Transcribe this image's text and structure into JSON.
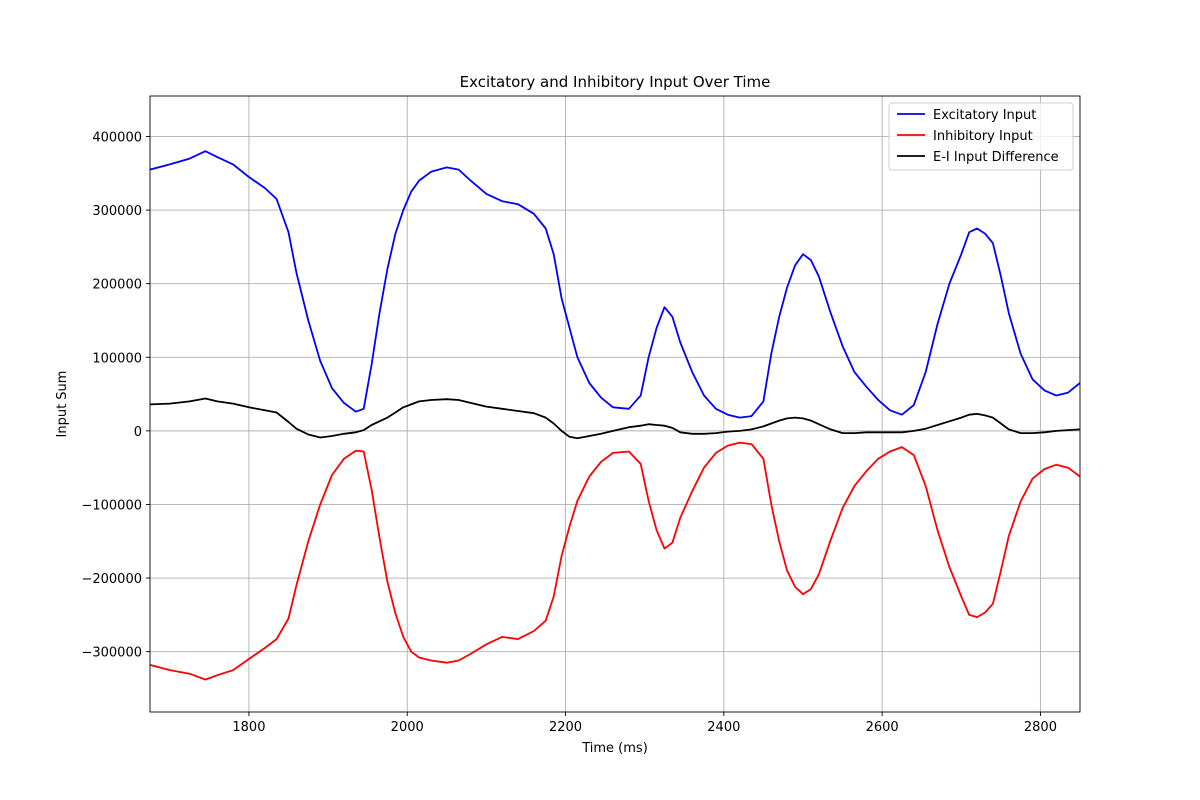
{
  "chart_data": {
    "type": "line",
    "title": "Excitatory and Inhibitory Input Over Time",
    "xlabel": "Time (ms)",
    "ylabel": "Input Sum",
    "xlim": [
      1675,
      2850
    ],
    "ylim": [
      -382000,
      455000
    ],
    "grid": true,
    "legend_position": "top-right",
    "x_ticks": [
      1800,
      2000,
      2200,
      2400,
      2600,
      2800
    ],
    "x_tick_labels": [
      "1800",
      "2000",
      "2200",
      "2400",
      "2600",
      "2800"
    ],
    "y_ticks": [
      -300000,
      -200000,
      -100000,
      0,
      100000,
      200000,
      300000,
      400000
    ],
    "y_tick_labels": [
      "−300000",
      "−200000",
      "−100000",
      "0",
      "100000",
      "200000",
      "300000",
      "400000"
    ],
    "series": [
      {
        "name": "Excitatory Input",
        "color": "#0000ff",
        "x": [
          1675,
          1700,
          1725,
          1745,
          1760,
          1780,
          1800,
          1820,
          1835,
          1850,
          1860,
          1875,
          1890,
          1905,
          1920,
          1935,
          1945,
          1955,
          1965,
          1975,
          1985,
          1995,
          2005,
          2015,
          2030,
          2050,
          2065,
          2080,
          2100,
          2120,
          2140,
          2160,
          2175,
          2185,
          2195,
          2205,
          2215,
          2230,
          2245,
          2260,
          2280,
          2295,
          2305,
          2315,
          2325,
          2335,
          2345,
          2360,
          2375,
          2390,
          2405,
          2420,
          2435,
          2450,
          2460,
          2470,
          2480,
          2490,
          2500,
          2510,
          2520,
          2535,
          2550,
          2565,
          2580,
          2595,
          2610,
          2625,
          2640,
          2655,
          2670,
          2685,
          2700,
          2710,
          2720,
          2730,
          2740,
          2750,
          2760,
          2775,
          2790,
          2805,
          2820,
          2835,
          2850
        ],
        "values": [
          355000,
          362000,
          370000,
          380000,
          372000,
          362000,
          345000,
          330000,
          315000,
          270000,
          215000,
          150000,
          95000,
          58000,
          38000,
          26000,
          30000,
          90000,
          160000,
          220000,
          268000,
          300000,
          325000,
          340000,
          352000,
          358000,
          355000,
          340000,
          322000,
          312000,
          308000,
          295000,
          275000,
          240000,
          180000,
          140000,
          100000,
          65000,
          45000,
          32000,
          30000,
          48000,
          100000,
          140000,
          168000,
          155000,
          120000,
          80000,
          48000,
          30000,
          22000,
          18000,
          20000,
          40000,
          105000,
          155000,
          195000,
          225000,
          240000,
          232000,
          210000,
          160000,
          115000,
          80000,
          60000,
          42000,
          28000,
          22000,
          35000,
          80000,
          145000,
          200000,
          240000,
          270000,
          275000,
          268000,
          255000,
          210000,
          160000,
          105000,
          70000,
          55000,
          48000,
          52000,
          65000
        ]
      },
      {
        "name": "Inhibitory Input",
        "color": "#ff0000",
        "x": [
          1675,
          1700,
          1725,
          1745,
          1760,
          1780,
          1800,
          1820,
          1835,
          1850,
          1860,
          1875,
          1890,
          1905,
          1920,
          1935,
          1945,
          1955,
          1965,
          1975,
          1985,
          1995,
          2005,
          2015,
          2030,
          2050,
          2065,
          2080,
          2100,
          2120,
          2140,
          2160,
          2175,
          2185,
          2195,
          2205,
          2215,
          2230,
          2245,
          2260,
          2280,
          2295,
          2305,
          2315,
          2325,
          2335,
          2345,
          2360,
          2375,
          2390,
          2405,
          2420,
          2435,
          2450,
          2460,
          2470,
          2480,
          2490,
          2500,
          2510,
          2520,
          2535,
          2550,
          2565,
          2580,
          2595,
          2610,
          2625,
          2640,
          2655,
          2670,
          2685,
          2700,
          2710,
          2720,
          2730,
          2740,
          2750,
          2760,
          2775,
          2790,
          2805,
          2820,
          2835,
          2850
        ],
        "values": [
          -318000,
          -325000,
          -330000,
          -338000,
          -332000,
          -325000,
          -310000,
          -295000,
          -283000,
          -255000,
          -210000,
          -150000,
          -100000,
          -60000,
          -38000,
          -27000,
          -28000,
          -80000,
          -145000,
          -205000,
          -248000,
          -280000,
          -300000,
          -308000,
          -312000,
          -315000,
          -312000,
          -303000,
          -290000,
          -280000,
          -283000,
          -272000,
          -258000,
          -225000,
          -170000,
          -130000,
          -95000,
          -62000,
          -42000,
          -30000,
          -28000,
          -45000,
          -95000,
          -135000,
          -160000,
          -152000,
          -118000,
          -82000,
          -50000,
          -30000,
          -20000,
          -16000,
          -18000,
          -38000,
          -100000,
          -150000,
          -190000,
          -212000,
          -222000,
          -215000,
          -195000,
          -148000,
          -105000,
          -75000,
          -55000,
          -38000,
          -28000,
          -22000,
          -33000,
          -75000,
          -135000,
          -185000,
          -225000,
          -250000,
          -253000,
          -247000,
          -235000,
          -190000,
          -143000,
          -96000,
          -65000,
          -52000,
          -46000,
          -50000,
          -62000
        ]
      },
      {
        "name": "E-I Input Difference",
        "color": "#000000",
        "x": [
          1675,
          1700,
          1725,
          1745,
          1760,
          1780,
          1800,
          1820,
          1835,
          1850,
          1860,
          1875,
          1890,
          1905,
          1920,
          1935,
          1945,
          1955,
          1965,
          1975,
          1985,
          1995,
          2005,
          2015,
          2030,
          2050,
          2065,
          2080,
          2100,
          2120,
          2140,
          2160,
          2175,
          2185,
          2195,
          2205,
          2215,
          2230,
          2245,
          2260,
          2280,
          2295,
          2305,
          2315,
          2325,
          2335,
          2345,
          2360,
          2375,
          2390,
          2405,
          2420,
          2435,
          2450,
          2460,
          2470,
          2480,
          2490,
          2500,
          2510,
          2520,
          2535,
          2550,
          2565,
          2580,
          2595,
          2610,
          2625,
          2640,
          2655,
          2670,
          2685,
          2700,
          2710,
          2720,
          2730,
          2740,
          2750,
          2760,
          2775,
          2790,
          2805,
          2820,
          2835,
          2850
        ],
        "values": [
          36000,
          37000,
          40000,
          44000,
          40000,
          37000,
          32000,
          28000,
          25000,
          12000,
          3000,
          -5000,
          -9000,
          -7000,
          -4000,
          -2000,
          1000,
          8000,
          13000,
          18000,
          25000,
          32000,
          36000,
          40000,
          42000,
          43000,
          42000,
          38000,
          33000,
          30000,
          27000,
          24000,
          18000,
          10000,
          0,
          -8000,
          -10000,
          -7000,
          -4000,
          0,
          5000,
          7000,
          9000,
          8000,
          7000,
          4000,
          -2000,
          -4000,
          -4000,
          -3000,
          -1000,
          0,
          2000,
          6000,
          10000,
          14000,
          17000,
          18000,
          17000,
          14000,
          9000,
          2000,
          -3000,
          -3000,
          -2000,
          -2000,
          -2000,
          -2000,
          0,
          3000,
          8000,
          13000,
          18000,
          22000,
          23000,
          21000,
          18000,
          10000,
          2000,
          -3000,
          -3000,
          -2000,
          0,
          1000,
          2000
        ]
      }
    ]
  }
}
